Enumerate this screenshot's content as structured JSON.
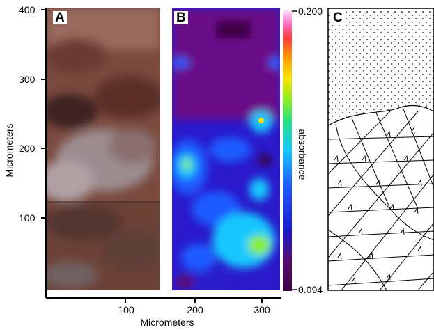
{
  "figure": {
    "panels": [
      {
        "letter": "A",
        "kind": "micrograph"
      },
      {
        "letter": "B",
        "kind": "absorbance-map"
      },
      {
        "letter": "C",
        "kind": "schematic-sketch"
      }
    ],
    "y_axis": {
      "label": "Micrometers",
      "ticks": [
        "400",
        "300",
        "200",
        "100"
      ]
    },
    "x_axis": {
      "label": "Micrometers",
      "ticks": [
        "100",
        "200",
        "300"
      ]
    },
    "colorbar": {
      "label": "absorbance",
      "max": "0.200",
      "min": "0.094",
      "colors": [
        "#3a0040",
        "#5a0a6e",
        "#1b1bd0",
        "#1e5cff",
        "#19c8ff",
        "#22e08a",
        "#8bf01e",
        "#ffe000",
        "#ff9a00",
        "#ff3b3b",
        "#ff70c8",
        "#ffe6ff"
      ]
    }
  },
  "chart_data": {
    "type": "heatmap",
    "title": "",
    "xlabel": "Micrometers",
    "ylabel": "Micrometers",
    "x_ticks": [
      100,
      200,
      300
    ],
    "y_ticks": [
      100,
      200,
      300,
      400
    ],
    "colorbar_range": [
      0.094,
      0.2
    ],
    "colorbar_label": "absorbance"
  }
}
